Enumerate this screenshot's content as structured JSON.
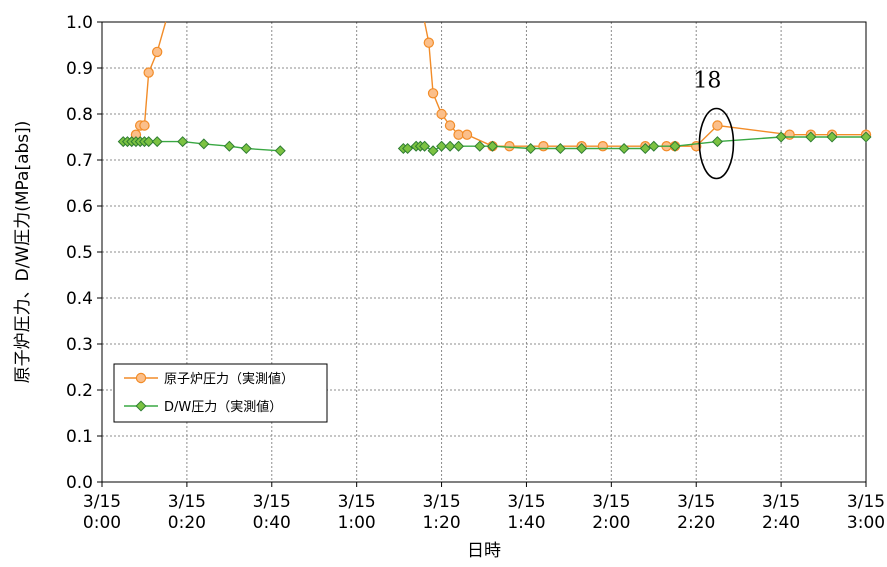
{
  "chart_data": {
    "type": "line",
    "xlabel": "日時",
    "ylabel": "原子炉圧力、D/W圧力(MPa[abs])",
    "xlim": [
      0,
      180
    ],
    "ylim": [
      0,
      1.0
    ],
    "y_ticks": [
      0.0,
      0.1,
      0.2,
      0.3,
      0.4,
      0.5,
      0.6,
      0.7,
      0.8,
      0.9,
      1.0
    ],
    "y_tick_labels": [
      "0.0",
      "0.1",
      "0.2",
      "0.3",
      "0.4",
      "0.5",
      "0.6",
      "0.7",
      "0.8",
      "0.9",
      "1.0"
    ],
    "x_ticks": [
      0,
      20,
      40,
      60,
      80,
      100,
      120,
      140,
      160,
      180
    ],
    "x_tick_labels": [
      [
        "3/15",
        "0:00"
      ],
      [
        "3/15",
        "0:20"
      ],
      [
        "3/15",
        "0:40"
      ],
      [
        "3/15",
        "1:00"
      ],
      [
        "3/15",
        "1:20"
      ],
      [
        "3/15",
        "1:40"
      ],
      [
        "3/15",
        "2:00"
      ],
      [
        "3/15",
        "2:20"
      ],
      [
        "3/15",
        "2:40"
      ],
      [
        "3/15",
        "3:00"
      ]
    ],
    "grid": true,
    "legend_position": "bottom-left",
    "annotation": {
      "text": "18",
      "x": 145,
      "y": 0.775
    },
    "series": [
      {
        "name": "原子炉圧力（実測値）",
        "color": "#F28C28",
        "marker": "circle",
        "segments": [
          [
            [
              8,
              0.755
            ],
            [
              9,
              0.775
            ],
            [
              10,
              0.775
            ],
            [
              11,
              0.89
            ],
            [
              13,
              0.935
            ],
            [
              15,
              1.0
            ]
          ],
          [
            [
              76,
              1.0
            ],
            [
              77,
              0.955
            ],
            [
              78,
              0.845
            ],
            [
              80,
              0.8
            ],
            [
              82,
              0.775
            ],
            [
              84,
              0.755
            ],
            [
              86,
              0.755
            ],
            [
              92,
              0.73
            ],
            [
              96,
              0.73
            ],
            [
              104,
              0.73
            ],
            [
              113,
              0.73
            ],
            [
              118,
              0.73
            ],
            [
              128,
              0.73
            ],
            [
              133,
              0.73
            ],
            [
              135,
              0.73
            ],
            [
              140,
              0.73
            ],
            [
              145,
              0.775
            ],
            [
              162,
              0.755
            ],
            [
              167,
              0.755
            ],
            [
              172,
              0.755
            ],
            [
              180,
              0.755
            ]
          ]
        ]
      },
      {
        "name": "D/W圧力（実測値）",
        "color": "#3AA843",
        "marker": "diamond",
        "segments": [
          [
            [
              5,
              0.74
            ],
            [
              6,
              0.74
            ],
            [
              7,
              0.74
            ],
            [
              8,
              0.74
            ],
            [
              9,
              0.74
            ],
            [
              10,
              0.74
            ],
            [
              11,
              0.74
            ],
            [
              13,
              0.74
            ],
            [
              19,
              0.74
            ],
            [
              24,
              0.735
            ],
            [
              30,
              0.73
            ],
            [
              34,
              0.725
            ],
            [
              42,
              0.72
            ]
          ],
          [
            [
              71,
              0.725
            ],
            [
              72,
              0.725
            ],
            [
              74,
              0.73
            ],
            [
              75,
              0.73
            ],
            [
              76,
              0.73
            ],
            [
              78,
              0.72
            ],
            [
              80,
              0.73
            ],
            [
              82,
              0.73
            ],
            [
              84,
              0.73
            ],
            [
              89,
              0.73
            ],
            [
              92,
              0.73
            ],
            [
              101,
              0.725
            ],
            [
              108,
              0.725
            ],
            [
              113,
              0.725
            ],
            [
              123,
              0.725
            ],
            [
              128,
              0.725
            ],
            [
              130,
              0.73
            ],
            [
              135,
              0.73
            ],
            [
              145,
              0.74
            ],
            [
              160,
              0.75
            ],
            [
              167,
              0.75
            ],
            [
              172,
              0.75
            ],
            [
              180,
              0.75
            ]
          ]
        ]
      }
    ]
  }
}
